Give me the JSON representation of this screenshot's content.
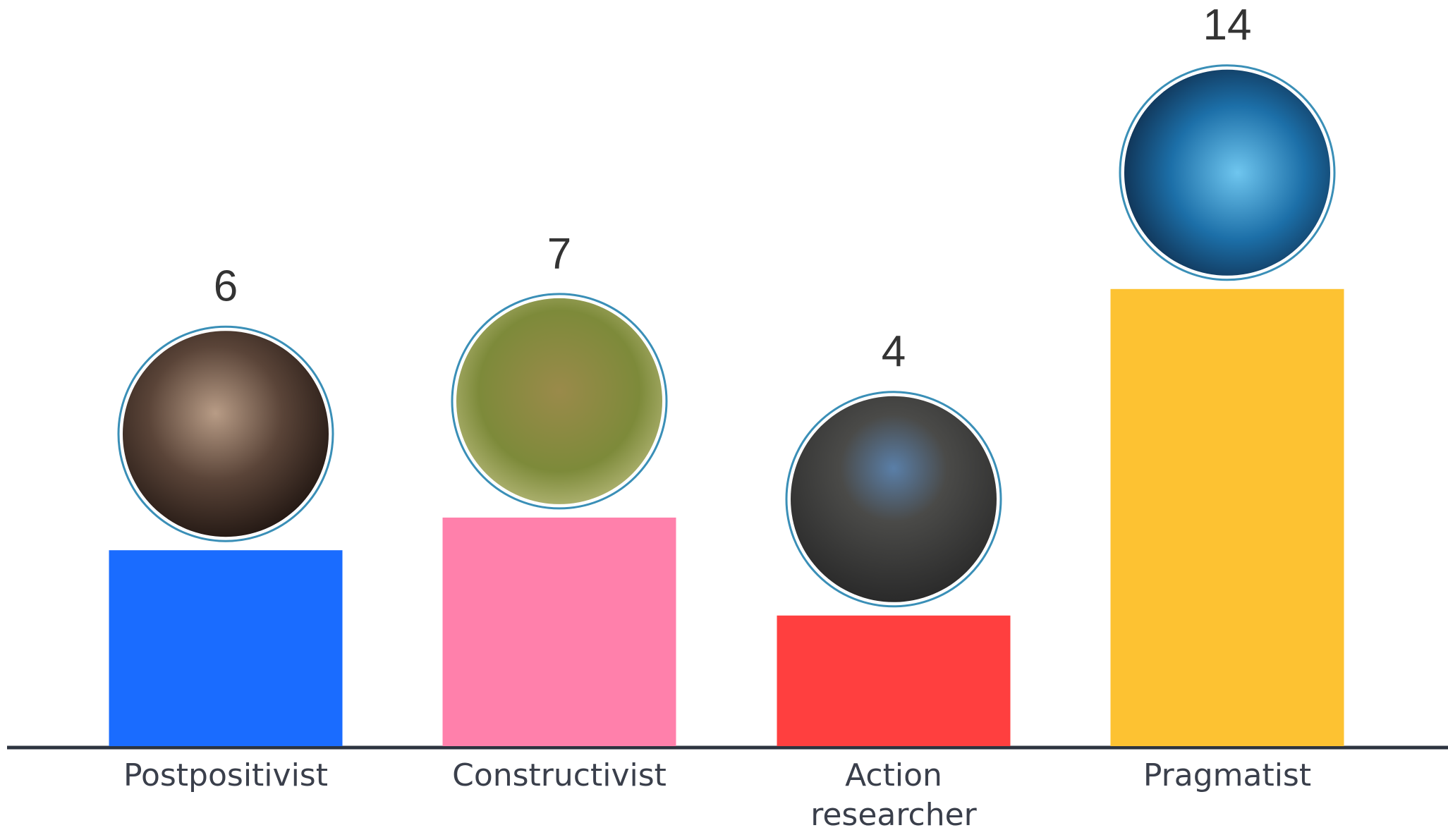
{
  "chart_data": {
    "type": "bar",
    "categories": [
      "Postpositivist",
      "Constructivist",
      "Action researcher",
      "Pragmatist"
    ],
    "values": [
      6,
      7,
      4,
      14
    ],
    "colors": [
      "#1a6cff",
      "#ff80ab",
      "#ff3f3f",
      "#fdc232"
    ]
  }
}
